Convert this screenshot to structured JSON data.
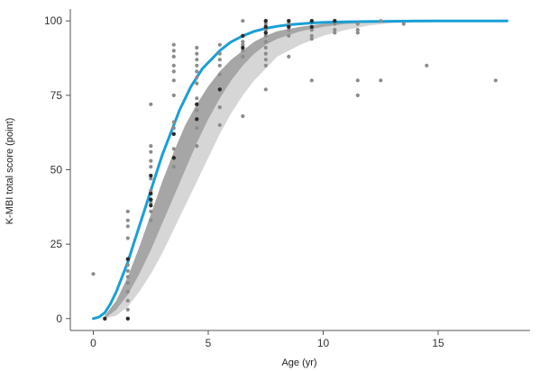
{
  "chart_data": {
    "type": "scatter",
    "title": "",
    "xlabel": "Age (yr)",
    "ylabel": "K-MBI total score (point)",
    "xlim": [
      -1,
      19
    ],
    "ylim": [
      -4,
      104
    ],
    "x_ticks": [
      0,
      5,
      10,
      15
    ],
    "y_ticks": [
      0,
      25,
      50,
      75,
      100
    ],
    "x_tick_labels": [
      "0",
      "5",
      "10",
      "15"
    ],
    "y_tick_labels": [
      "0",
      "25",
      "50",
      "75",
      "100"
    ],
    "grid": false,
    "colors": {
      "curve": "#1a9fd6",
      "band_inner": "#a6a6a6",
      "band_outer": "#d6d6d6",
      "point_dark": "#2b2b2b",
      "point_light": "#8c8c8c",
      "axis": "#555555"
    },
    "series": [
      {
        "type": "line",
        "x": [
          0,
          0.25,
          0.5,
          0.75,
          1,
          1.25,
          1.5,
          1.75,
          2,
          2.25,
          2.5,
          2.75,
          3,
          3.25,
          3.5,
          3.75,
          4,
          4.25,
          4.5,
          4.75,
          5,
          5.25,
          5.5,
          5.75,
          6,
          6.5,
          7,
          7.5,
          8,
          8.5,
          9,
          9.5,
          10,
          11,
          12,
          13,
          14,
          15,
          16,
          17,
          18
        ],
        "y": [
          0,
          0.5,
          2,
          5,
          9,
          14,
          19,
          25,
          31,
          37,
          43,
          49,
          55,
          60,
          65,
          70,
          74,
          78,
          81,
          84,
          86,
          88,
          90,
          91.5,
          93,
          95,
          96.5,
          97.5,
          98.2,
          98.7,
          99,
          99.3,
          99.5,
          99.7,
          99.8,
          99.9,
          99.95,
          100,
          100,
          100,
          100
        ]
      },
      {
        "type": "band_inner",
        "x": [
          0.5,
          1,
          1.5,
          2,
          2.5,
          3,
          3.5,
          4,
          4.5,
          5,
          5.5,
          6,
          6.5,
          7,
          7.5,
          8,
          9,
          10,
          11,
          12,
          13,
          14
        ],
        "low": [
          0,
          3,
          8,
          15,
          23,
          32,
          41,
          50,
          59,
          67,
          74,
          80,
          85,
          89,
          92,
          94,
          96.5,
          98,
          99,
          99.5,
          99.7,
          99.8
        ],
        "high": [
          1,
          6,
          14,
          24,
          35,
          46,
          56,
          65,
          72,
          78,
          83,
          87,
          90,
          93,
          95,
          96.5,
          98,
          99,
          99.5,
          99.7,
          99.8,
          99.9
        ]
      },
      {
        "type": "band_outer",
        "x": [
          0.5,
          1,
          1.5,
          2,
          2.5,
          3,
          3.5,
          4,
          4.5,
          5,
          5.5,
          6,
          6.5,
          7,
          7.5,
          8,
          9,
          10,
          11,
          12,
          13,
          14
        ],
        "low": [
          0,
          1,
          4,
          9,
          15,
          22,
          30,
          38,
          46,
          54,
          62,
          69,
          75,
          80,
          84,
          88,
          92,
          95,
          97,
          98.5,
          99.3,
          99.7
        ],
        "high": [
          1,
          6,
          14,
          24,
          35,
          46,
          56,
          65,
          72,
          78,
          83,
          87,
          90,
          93,
          95,
          96.5,
          98,
          99,
          99.5,
          99.7,
          99.8,
          99.9
        ]
      },
      {
        "type": "scatter_light",
        "points": [
          [
            0,
            15
          ],
          [
            1.5,
            36
          ],
          [
            1.5,
            33
          ],
          [
            1.5,
            31
          ],
          [
            1.5,
            27
          ],
          [
            1.5,
            18
          ],
          [
            1.5,
            16
          ],
          [
            1.5,
            14
          ],
          [
            1.5,
            12
          ],
          [
            1.5,
            9
          ],
          [
            1.5,
            6
          ],
          [
            1.5,
            3
          ],
          [
            2.5,
            72
          ],
          [
            2.5,
            58
          ],
          [
            2.5,
            56
          ],
          [
            2.5,
            53
          ],
          [
            2.5,
            51
          ],
          [
            2.5,
            47
          ],
          [
            2.5,
            43
          ],
          [
            2.5,
            39
          ],
          [
            2.5,
            36
          ],
          [
            2.5,
            33
          ],
          [
            3.5,
            92
          ],
          [
            3.5,
            90
          ],
          [
            3.5,
            88
          ],
          [
            3.5,
            85
          ],
          [
            3.5,
            83
          ],
          [
            3.5,
            80
          ],
          [
            3.5,
            75
          ],
          [
            3.5,
            66
          ],
          [
            3.5,
            64
          ],
          [
            3.5,
            57
          ],
          [
            3.5,
            51
          ],
          [
            4.5,
            91
          ],
          [
            4.5,
            89
          ],
          [
            4.5,
            87
          ],
          [
            4.5,
            85
          ],
          [
            4.5,
            83
          ],
          [
            4.5,
            81
          ],
          [
            4.5,
            79
          ],
          [
            4.5,
            74
          ],
          [
            4.5,
            70
          ],
          [
            4.5,
            64
          ],
          [
            4.5,
            58
          ],
          [
            5.5,
            92
          ],
          [
            5.5,
            89
          ],
          [
            5.5,
            87
          ],
          [
            5.5,
            85
          ],
          [
            5.5,
            82
          ],
          [
            5.5,
            71
          ],
          [
            5.5,
            65
          ],
          [
            6.5,
            100
          ],
          [
            6.5,
            93
          ],
          [
            6.5,
            92
          ],
          [
            6.5,
            90
          ],
          [
            6.5,
            88
          ],
          [
            6.5,
            68
          ],
          [
            7.5,
            99
          ],
          [
            7.5,
            97
          ],
          [
            7.5,
            95
          ],
          [
            7.5,
            93
          ],
          [
            7.5,
            91
          ],
          [
            7.5,
            89
          ],
          [
            7.5,
            87
          ],
          [
            7.5,
            85
          ],
          [
            7.5,
            77
          ],
          [
            8.5,
            99
          ],
          [
            8.5,
            97
          ],
          [
            8.5,
            95
          ],
          [
            8.5,
            88
          ],
          [
            9.5,
            97
          ],
          [
            9.5,
            95
          ],
          [
            9.5,
            94
          ],
          [
            9.5,
            80
          ],
          [
            10.5,
            99
          ],
          [
            10.5,
            97
          ],
          [
            10.5,
            96
          ],
          [
            11.5,
            99
          ],
          [
            11.5,
            97
          ],
          [
            11.5,
            96
          ],
          [
            11.5,
            80
          ],
          [
            11.5,
            75
          ],
          [
            12.5,
            100
          ],
          [
            12.5,
            80
          ],
          [
            13.5,
            99
          ],
          [
            14.5,
            85
          ],
          [
            17.5,
            80
          ]
        ]
      },
      {
        "type": "scatter_dark",
        "points": [
          [
            0.5,
            0
          ],
          [
            1.5,
            0
          ],
          [
            1.5,
            20
          ],
          [
            2.5,
            48
          ],
          [
            2.5,
            42
          ],
          [
            2.5,
            40
          ],
          [
            2.5,
            38
          ],
          [
            3.5,
            62
          ],
          [
            3.5,
            54
          ],
          [
            4.5,
            72
          ],
          [
            4.5,
            67
          ],
          [
            5.5,
            77
          ],
          [
            6.5,
            91
          ],
          [
            6.5,
            95
          ],
          [
            7.5,
            100
          ],
          [
            7.5,
            98
          ],
          [
            7.5,
            96
          ],
          [
            8.5,
            100
          ],
          [
            8.5,
            98
          ],
          [
            9.5,
            100
          ],
          [
            9.5,
            98
          ],
          [
            10.5,
            100
          ]
        ]
      }
    ]
  }
}
